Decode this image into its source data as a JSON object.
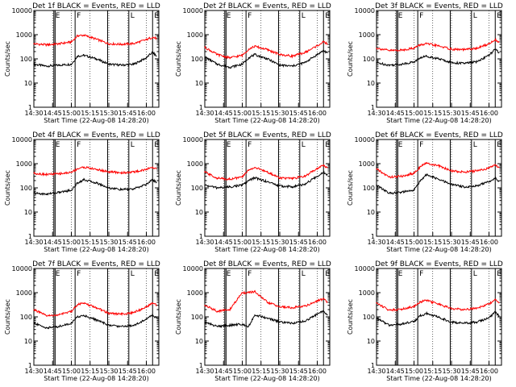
{
  "figure": {
    "background": "#ffffff",
    "colors": {
      "events": "#000000",
      "lld": "#ff0000",
      "axes": "#000000"
    },
    "x_tick_labels": [
      "14:30",
      "14:45",
      "15:00",
      "15:15",
      "15:30",
      "15:45",
      "16:00"
    ],
    "y_tick_labels": [
      "1",
      "10",
      "100",
      "1000",
      "10000"
    ]
  },
  "chart_data": [
    {
      "type": "line",
      "title": "Det 1f BLACK = Events, RED = LLD",
      "xlabel": "Start Time (22-Aug-08 14:28:20)",
      "ylabel": "Counts/sec",
      "ylog": true,
      "ylim": [
        1,
        10000
      ],
      "xlim": [
        "14:30",
        "16:10"
      ],
      "x": [
        "14:30",
        "14:40",
        "14:50",
        "15:00",
        "15:05",
        "15:10",
        "15:20",
        "15:30",
        "15:40",
        "15:50",
        "16:00",
        "16:05",
        "16:08"
      ],
      "series": [
        {
          "name": "Events",
          "color": "#000000",
          "values": [
            60,
            50,
            55,
            60,
            130,
            140,
            100,
            60,
            55,
            60,
            110,
            190,
            130
          ]
        },
        {
          "name": "LLD",
          "color": "#ff0000",
          "values": [
            420,
            380,
            420,
            500,
            900,
            950,
            650,
            420,
            400,
            430,
            620,
            780,
            700
          ]
        }
      ],
      "vertical_markers": [
        "14:46",
        "14:47",
        "15:03",
        "15:29",
        "15:46",
        "16:05"
      ],
      "marker_labels": [
        "E",
        "F",
        "L",
        "E"
      ]
    },
    {
      "type": "line",
      "title": "Det 2f BLACK = Events, RED = LLD",
      "xlabel": "Start Time (22-Aug-08 14:28:20)",
      "ylabel": "Counts/sec",
      "ylog": true,
      "ylim": [
        1,
        10000
      ],
      "xlim": [
        "14:30",
        "16:10"
      ],
      "x": [
        "14:30",
        "14:40",
        "14:50",
        "15:00",
        "15:05",
        "15:10",
        "15:20",
        "15:30",
        "15:40",
        "15:50",
        "16:00",
        "16:05",
        "16:08"
      ],
      "series": [
        {
          "name": "Events",
          "color": "#000000",
          "values": [
            120,
            60,
            45,
            60,
            110,
            150,
            100,
            55,
            50,
            70,
            150,
            220,
            180
          ]
        },
        {
          "name": "LLD",
          "color": "#ff0000",
          "values": [
            300,
            150,
            110,
            140,
            250,
            330,
            240,
            150,
            130,
            180,
            350,
            500,
            420
          ]
        }
      ],
      "vertical_markers": [
        "14:46",
        "14:47",
        "15:03",
        "15:29",
        "15:46",
        "16:05"
      ],
      "marker_labels": [
        "E",
        "F",
        "L",
        "E"
      ]
    },
    {
      "type": "line",
      "title": "Det 3f BLACK = Events, RED = LLD",
      "xlabel": "Start Time (22-Aug-08 14:28:20)",
      "ylabel": "Counts/sec",
      "ylog": true,
      "ylim": [
        1,
        10000
      ],
      "xlim": [
        "14:30",
        "16:10"
      ],
      "x": [
        "14:30",
        "14:40",
        "14:50",
        "15:00",
        "15:05",
        "15:10",
        "15:20",
        "15:30",
        "15:40",
        "15:50",
        "16:00",
        "16:05",
        "16:08"
      ],
      "series": [
        {
          "name": "Events",
          "color": "#000000",
          "values": [
            70,
            55,
            60,
            75,
            110,
            130,
            100,
            70,
            65,
            75,
            140,
            250,
            180
          ]
        },
        {
          "name": "LLD",
          "color": "#ff0000",
          "values": [
            280,
            220,
            230,
            280,
            380,
            420,
            340,
            250,
            240,
            270,
            420,
            620,
            500
          ]
        }
      ],
      "vertical_markers": [
        "14:46",
        "14:47",
        "15:03",
        "15:29",
        "15:46",
        "16:05"
      ],
      "marker_labels": [
        "E",
        "F",
        "L",
        "E"
      ]
    },
    {
      "type": "line",
      "title": "Det 4f BLACK = Events, RED = LLD",
      "xlabel": "Start Time (22-Aug-08 14:28:20)",
      "ylabel": "Counts/sec",
      "ylog": true,
      "ylim": [
        1,
        10000
      ],
      "xlim": [
        "14:30",
        "16:10"
      ],
      "x": [
        "14:30",
        "14:40",
        "14:50",
        "15:00",
        "15:05",
        "15:10",
        "15:20",
        "15:30",
        "15:40",
        "15:50",
        "16:00",
        "16:05",
        "16:08"
      ],
      "series": [
        {
          "name": "Events",
          "color": "#000000",
          "values": [
            60,
            55,
            65,
            80,
            160,
            220,
            160,
            100,
            85,
            90,
            140,
            220,
            170
          ]
        },
        {
          "name": "LLD",
          "color": "#ff0000",
          "values": [
            400,
            360,
            380,
            440,
            620,
            720,
            580,
            460,
            420,
            450,
            580,
            720,
            620
          ]
        }
      ],
      "vertical_markers": [
        "14:46",
        "14:47",
        "15:03",
        "15:29",
        "15:46",
        "16:05"
      ],
      "marker_labels": [
        "E",
        "F",
        "L",
        "E"
      ]
    },
    {
      "type": "line",
      "title": "Det 5f BLACK = Events, RED = LLD",
      "xlabel": "Start Time (22-Aug-08 14:28:20)",
      "ylabel": "Counts/sec",
      "ylog": true,
      "ylim": [
        1,
        10000
      ],
      "xlim": [
        "14:30",
        "16:10"
      ],
      "x": [
        "14:30",
        "14:40",
        "14:50",
        "15:00",
        "15:05",
        "15:10",
        "15:20",
        "15:30",
        "15:40",
        "15:50",
        "16:00",
        "16:05",
        "16:08"
      ],
      "series": [
        {
          "name": "Events",
          "color": "#000000",
          "values": [
            130,
            100,
            110,
            130,
            200,
            260,
            180,
            120,
            110,
            140,
            300,
            450,
            350
          ]
        },
        {
          "name": "LLD",
          "color": "#ff0000",
          "values": [
            450,
            250,
            230,
            280,
            550,
            700,
            450,
            260,
            240,
            300,
            650,
            850,
            700
          ]
        }
      ],
      "vertical_markers": [
        "14:46",
        "14:47",
        "15:03",
        "15:29",
        "15:46",
        "16:05"
      ],
      "marker_labels": [
        "E",
        "F",
        "L",
        "E"
      ]
    },
    {
      "type": "line",
      "title": "Det 6f BLACK = Events, RED = LLD",
      "xlabel": "Start Time (22-Aug-08 14:28:20)",
      "ylabel": "Counts/sec",
      "ylog": true,
      "ylim": [
        1,
        10000
      ],
      "xlim": [
        "14:30",
        "16:10"
      ],
      "x": [
        "14:30",
        "14:40",
        "14:50",
        "15:00",
        "15:05",
        "15:10",
        "15:20",
        "15:30",
        "15:40",
        "15:50",
        "16:00",
        "16:05",
        "16:08"
      ],
      "series": [
        {
          "name": "Events",
          "color": "#000000",
          "values": [
            130,
            60,
            65,
            80,
            200,
            350,
            220,
            140,
            110,
            120,
            180,
            260,
            190
          ]
        },
        {
          "name": "LLD",
          "color": "#ff0000",
          "values": [
            600,
            280,
            300,
            400,
            750,
            1050,
            800,
            500,
            450,
            500,
            650,
            900,
            700
          ]
        }
      ],
      "vertical_markers": [
        "14:46",
        "14:47",
        "15:03",
        "15:29",
        "15:46",
        "16:05"
      ],
      "marker_labels": [
        "E",
        "F",
        "L",
        "E"
      ]
    },
    {
      "type": "line",
      "title": "Det 7f BLACK = Events, RED = LLD",
      "xlabel": "Start Time (22-Aug-08 14:28:20)",
      "ylabel": "Counts/sec",
      "ylog": true,
      "ylim": [
        1,
        10000
      ],
      "xlim": [
        "14:30",
        "16:10"
      ],
      "x": [
        "14:30",
        "14:40",
        "14:50",
        "15:00",
        "15:05",
        "15:10",
        "15:20",
        "15:30",
        "15:40",
        "15:50",
        "16:00",
        "16:05",
        "16:08"
      ],
      "series": [
        {
          "name": "Events",
          "color": "#000000",
          "values": [
            55,
            35,
            40,
            55,
            100,
            115,
            75,
            45,
            40,
            45,
            80,
            120,
            90
          ]
        },
        {
          "name": "LLD",
          "color": "#ff0000",
          "values": [
            200,
            110,
            120,
            170,
            330,
            360,
            240,
            140,
            130,
            150,
            260,
            380,
            300
          ]
        }
      ],
      "vertical_markers": [
        "14:46",
        "14:47",
        "15:03",
        "15:29",
        "15:46",
        "16:05"
      ],
      "marker_labels": [
        "E",
        "F",
        "L",
        "E"
      ]
    },
    {
      "type": "line",
      "title": "Det 8f BLACK = Events, RED = LLD",
      "xlabel": "Start Time (22-Aug-08 14:28:20)",
      "ylabel": "Counts/sec",
      "ylog": true,
      "ylim": [
        1,
        10000
      ],
      "xlim": [
        "14:30",
        "16:10"
      ],
      "x": [
        "14:30",
        "14:40",
        "14:50",
        "15:00",
        "15:05",
        "15:10",
        "15:20",
        "15:30",
        "15:40",
        "15:50",
        "16:00",
        "16:05",
        "16:08"
      ],
      "series": [
        {
          "name": "Events",
          "color": "#000000",
          "values": [
            60,
            40,
            45,
            50,
            40,
            120,
            90,
            60,
            55,
            65,
            130,
            180,
            120
          ]
        },
        {
          "name": "LLD",
          "color": "#ff0000",
          "values": [
            300,
            170,
            200,
            1000,
            1000,
            1100,
            400,
            260,
            240,
            280,
            450,
            550,
            420
          ]
        }
      ],
      "vertical_markers": [
        "14:46",
        "14:47",
        "15:03",
        "15:29",
        "15:46",
        "16:05"
      ],
      "marker_labels": [
        "E",
        "F",
        "L",
        "E"
      ]
    },
    {
      "type": "line",
      "title": "Det 9f BLACK = Events, RED = LLD",
      "xlabel": "Start Time (22-Aug-08 14:28:20)",
      "ylabel": "Counts/sec",
      "ylog": true,
      "ylim": [
        1,
        10000
      ],
      "xlim": [
        "14:30",
        "16:10"
      ],
      "x": [
        "14:30",
        "14:40",
        "14:50",
        "15:00",
        "15:05",
        "15:10",
        "15:20",
        "15:30",
        "15:40",
        "15:50",
        "16:00",
        "16:05",
        "16:08"
      ],
      "series": [
        {
          "name": "Events",
          "color": "#000000",
          "values": [
            90,
            45,
            50,
            65,
            110,
            140,
            95,
            60,
            55,
            60,
            90,
            160,
            110
          ]
        },
        {
          "name": "LLD",
          "color": "#ff0000",
          "values": [
            380,
            190,
            210,
            270,
            420,
            480,
            330,
            220,
            200,
            230,
            340,
            500,
            380
          ]
        }
      ],
      "vertical_markers": [
        "14:46",
        "14:47",
        "15:03",
        "15:29",
        "15:46",
        "16:05"
      ],
      "marker_labels": [
        "E",
        "F",
        "L",
        "E"
      ]
    }
  ]
}
